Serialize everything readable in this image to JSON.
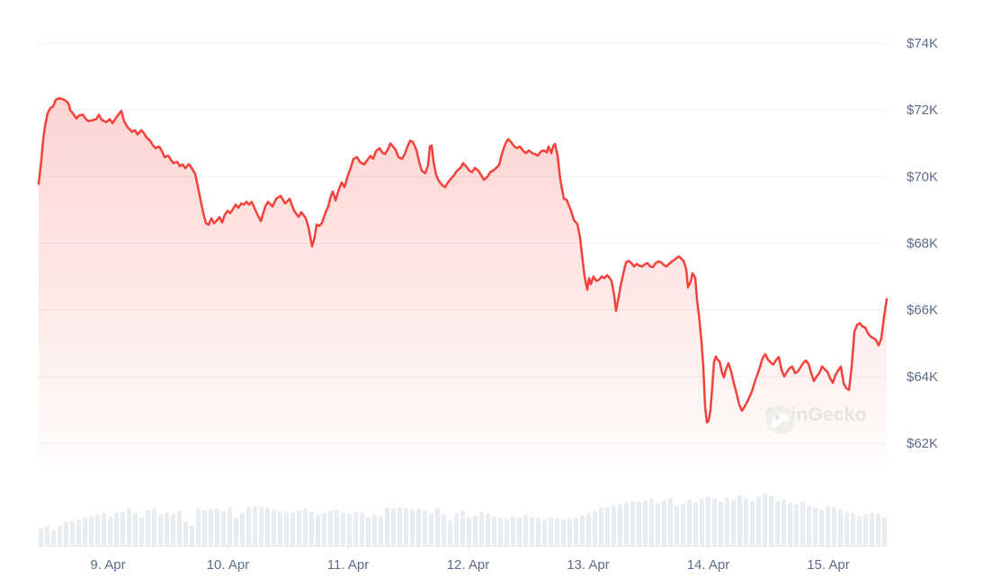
{
  "watermark": {
    "text": "CoinGecko"
  },
  "style": {
    "background": "#ffffff",
    "line_color": "#f4423b",
    "fill_top": "rgba(246,70,60,0.26)",
    "fill_bottom": "rgba(246,70,60,0.015)",
    "grid_color": "#eef0f4",
    "label_color": "#5d6c8a",
    "volume_color": "#e9edf2",
    "baseline_color": "#e3e8ee",
    "watermark_text_color": "#e5e4e1",
    "watermark_logo_color": "#f0efec"
  },
  "chart_data": {
    "type": "line",
    "subtype": "price-with-volume",
    "grid": true,
    "legend": "none",
    "y_axis": {
      "side": "right",
      "unit": "USD",
      "tick_labels": [
        "$74K",
        "$72K",
        "$70K",
        "$68K",
        "$66K",
        "$64K",
        "$62K"
      ],
      "tick_values_k": [
        74,
        72,
        70,
        68,
        66,
        64,
        62
      ],
      "range_k": [
        62,
        74
      ]
    },
    "x_axis": {
      "tick_labels": [
        "9. Apr",
        "10. Apr",
        "11. Apr",
        "12. Apr",
        "13. Apr",
        "14. Apr",
        "15. Apr"
      ],
      "note": "hourly price points spanning ~8 Apr 10:00 to 15 Apr 12:00"
    },
    "price_series": {
      "name": "price",
      "unit_hint": "thousand USD",
      "points": [
        [
          43,
          69.78
        ],
        [
          46,
          70.5
        ],
        [
          48,
          71.1
        ],
        [
          50,
          71.5
        ],
        [
          53,
          71.9
        ],
        [
          56,
          72.05
        ],
        [
          59,
          72.1
        ],
        [
          62,
          72.3
        ],
        [
          66,
          72.35
        ],
        [
          70,
          72.32
        ],
        [
          73,
          72.27
        ],
        [
          76,
          72.2
        ],
        [
          78,
          72.0
        ],
        [
          82,
          71.86
        ],
        [
          85,
          71.74
        ],
        [
          88,
          71.83
        ],
        [
          92,
          71.86
        ],
        [
          95,
          71.74
        ],
        [
          98,
          71.66
        ],
        [
          102,
          71.68
        ],
        [
          107,
          71.72
        ],
        [
          110,
          71.85
        ],
        [
          113,
          71.7
        ],
        [
          118,
          71.63
        ],
        [
          122,
          71.72
        ],
        [
          125,
          71.6
        ],
        [
          130,
          71.8
        ],
        [
          135,
          71.97
        ],
        [
          138,
          71.66
        ],
        [
          142,
          71.47
        ],
        [
          147,
          71.34
        ],
        [
          150,
          71.39
        ],
        [
          153,
          71.26
        ],
        [
          157,
          71.39
        ],
        [
          160,
          71.3
        ],
        [
          163,
          71.17
        ],
        [
          167,
          71.07
        ],
        [
          170,
          70.94
        ],
        [
          173,
          70.85
        ],
        [
          177,
          70.9
        ],
        [
          180,
          70.77
        ],
        [
          183,
          70.58
        ],
        [
          187,
          70.63
        ],
        [
          190,
          70.5
        ],
        [
          193,
          70.4
        ],
        [
          197,
          70.44
        ],
        [
          200,
          70.31
        ],
        [
          203,
          70.36
        ],
        [
          206,
          70.25
        ],
        [
          210,
          70.37
        ],
        [
          213,
          70.26
        ],
        [
          217,
          70.08
        ],
        [
          220,
          69.7
        ],
        [
          223,
          69.3
        ],
        [
          226,
          68.9
        ],
        [
          229,
          68.6
        ],
        [
          232,
          68.55
        ],
        [
          235,
          68.75
        ],
        [
          238,
          68.6
        ],
        [
          241,
          68.68
        ],
        [
          244,
          68.78
        ],
        [
          247,
          68.62
        ],
        [
          250,
          68.85
        ],
        [
          253,
          68.97
        ],
        [
          256,
          68.9
        ],
        [
          259,
          69.02
        ],
        [
          262,
          69.16
        ],
        [
          265,
          69.06
        ],
        [
          268,
          69.19
        ],
        [
          271,
          69.16
        ],
        [
          274,
          69.24
        ],
        [
          277,
          69.16
        ],
        [
          280,
          69.24
        ],
        [
          285,
          68.93
        ],
        [
          290,
          68.66
        ],
        [
          295,
          69.1
        ],
        [
          298,
          69.24
        ],
        [
          303,
          69.1
        ],
        [
          307,
          69.33
        ],
        [
          312,
          69.42
        ],
        [
          317,
          69.19
        ],
        [
          322,
          69.33
        ],
        [
          327,
          68.97
        ],
        [
          332,
          68.79
        ],
        [
          335,
          68.93
        ],
        [
          340,
          68.75
        ],
        [
          343,
          68.48
        ],
        [
          347,
          67.9
        ],
        [
          350,
          68.2
        ],
        [
          352,
          68.56
        ],
        [
          355,
          68.52
        ],
        [
          358,
          68.6
        ],
        [
          362,
          68.93
        ],
        [
          365,
          69.1
        ],
        [
          368,
          69.42
        ],
        [
          370,
          69.55
        ],
        [
          373,
          69.28
        ],
        [
          377,
          69.63
        ],
        [
          380,
          69.82
        ],
        [
          383,
          69.68
        ],
        [
          387,
          70.04
        ],
        [
          390,
          70.26
        ],
        [
          393,
          70.53
        ],
        [
          397,
          70.58
        ],
        [
          400,
          70.44
        ],
        [
          405,
          70.36
        ],
        [
          408,
          70.48
        ],
        [
          412,
          70.62
        ],
        [
          415,
          70.53
        ],
        [
          418,
          70.76
        ],
        [
          422,
          70.85
        ],
        [
          425,
          70.72
        ],
        [
          428,
          70.67
        ],
        [
          432,
          70.85
        ],
        [
          434,
          70.99
        ],
        [
          437,
          70.9
        ],
        [
          440,
          70.8
        ],
        [
          443,
          70.58
        ],
        [
          447,
          70.53
        ],
        [
          450,
          70.67
        ],
        [
          453,
          70.9
        ],
        [
          456,
          71.07
        ],
        [
          459,
          71.04
        ],
        [
          463,
          70.8
        ],
        [
          466,
          70.44
        ],
        [
          469,
          70.17
        ],
        [
          473,
          70.1
        ],
        [
          476,
          70.35
        ],
        [
          478,
          70.9
        ],
        [
          480,
          70.93
        ],
        [
          482,
          70.44
        ],
        [
          485,
          70.04
        ],
        [
          488,
          69.86
        ],
        [
          492,
          69.73
        ],
        [
          495,
          69.68
        ],
        [
          498,
          69.82
        ],
        [
          502,
          69.95
        ],
        [
          505,
          70.04
        ],
        [
          508,
          70.17
        ],
        [
          512,
          70.26
        ],
        [
          515,
          70.4
        ],
        [
          518,
          70.31
        ],
        [
          522,
          70.17
        ],
        [
          525,
          70.13
        ],
        [
          528,
          70.26
        ],
        [
          532,
          70.17
        ],
        [
          535,
          70.04
        ],
        [
          538,
          69.9
        ],
        [
          542,
          69.99
        ],
        [
          545,
          70.13
        ],
        [
          548,
          70.17
        ],
        [
          552,
          70.26
        ],
        [
          555,
          70.35
        ],
        [
          558,
          70.67
        ],
        [
          562,
          70.99
        ],
        [
          565,
          71.12
        ],
        [
          568,
          71.04
        ],
        [
          572,
          70.9
        ],
        [
          575,
          70.85
        ],
        [
          578,
          70.9
        ],
        [
          582,
          70.76
        ],
        [
          585,
          70.7
        ],
        [
          588,
          70.78
        ],
        [
          592,
          70.7
        ],
        [
          595,
          70.67
        ],
        [
          598,
          70.63
        ],
        [
          602,
          70.76
        ],
        [
          605,
          70.78
        ],
        [
          608,
          70.72
        ],
        [
          610,
          70.9
        ],
        [
          613,
          70.7
        ],
        [
          615,
          70.9
        ],
        [
          617,
          70.98
        ],
        [
          620,
          70.63
        ],
        [
          623,
          69.9
        ],
        [
          627,
          69.33
        ],
        [
          630,
          69.3
        ],
        [
          635,
          68.97
        ],
        [
          638,
          68.7
        ],
        [
          642,
          68.57
        ],
        [
          645,
          68.17
        ],
        [
          647,
          67.68
        ],
        [
          650,
          67.0
        ],
        [
          653,
          66.6
        ],
        [
          655,
          66.95
        ],
        [
          657,
          66.77
        ],
        [
          660,
          67.0
        ],
        [
          663,
          66.87
        ],
        [
          666,
          66.9
        ],
        [
          669,
          67.0
        ],
        [
          672,
          66.95
        ],
        [
          675,
          67.04
        ],
        [
          678,
          66.95
        ],
        [
          680,
          66.87
        ],
        [
          683,
          66.42
        ],
        [
          685,
          65.97
        ],
        [
          688,
          66.4
        ],
        [
          690,
          66.72
        ],
        [
          693,
          67.08
        ],
        [
          696,
          67.42
        ],
        [
          699,
          67.47
        ],
        [
          702,
          67.4
        ],
        [
          705,
          67.3
        ],
        [
          708,
          67.38
        ],
        [
          711,
          67.32
        ],
        [
          714,
          67.3
        ],
        [
          717,
          67.37
        ],
        [
          720,
          67.4
        ],
        [
          723,
          67.3
        ],
        [
          726,
          67.28
        ],
        [
          729,
          67.4
        ],
        [
          732,
          67.45
        ],
        [
          735,
          67.43
        ],
        [
          738,
          67.35
        ],
        [
          741,
          67.3
        ],
        [
          744,
          67.38
        ],
        [
          747,
          67.45
        ],
        [
          750,
          67.5
        ],
        [
          753,
          67.57
        ],
        [
          755,
          67.6
        ],
        [
          758,
          67.52
        ],
        [
          760,
          67.47
        ],
        [
          763,
          67.22
        ],
        [
          765,
          66.67
        ],
        [
          768,
          66.85
        ],
        [
          770,
          67.1
        ],
        [
          773,
          66.97
        ],
        [
          775,
          66.3
        ],
        [
          777,
          65.88
        ],
        [
          780,
          65.05
        ],
        [
          782,
          64.3
        ],
        [
          784,
          63.1
        ],
        [
          786,
          62.62
        ],
        [
          788,
          62.68
        ],
        [
          790,
          63.0
        ],
        [
          792,
          63.7
        ],
        [
          794,
          64.45
        ],
        [
          796,
          64.6
        ],
        [
          798,
          64.5
        ],
        [
          800,
          64.46
        ],
        [
          803,
          64.1
        ],
        [
          805,
          63.97
        ],
        [
          807,
          64.2
        ],
        [
          810,
          64.4
        ],
        [
          813,
          64.15
        ],
        [
          816,
          63.8
        ],
        [
          819,
          63.5
        ],
        [
          822,
          63.15
        ],
        [
          825,
          62.97
        ],
        [
          828,
          63.1
        ],
        [
          832,
          63.3
        ],
        [
          836,
          63.55
        ],
        [
          840,
          63.9
        ],
        [
          844,
          64.2
        ],
        [
          848,
          64.55
        ],
        [
          851,
          64.67
        ],
        [
          854,
          64.5
        ],
        [
          857,
          64.42
        ],
        [
          860,
          64.36
        ],
        [
          863,
          64.5
        ],
        [
          866,
          64.58
        ],
        [
          869,
          64.2
        ],
        [
          872,
          64.0
        ],
        [
          875,
          64.14
        ],
        [
          878,
          64.25
        ],
        [
          881,
          64.3
        ],
        [
          884,
          64.1
        ],
        [
          887,
          64.15
        ],
        [
          890,
          64.27
        ],
        [
          893,
          64.4
        ],
        [
          896,
          64.48
        ],
        [
          899,
          64.38
        ],
        [
          902,
          64.1
        ],
        [
          905,
          63.86
        ],
        [
          908,
          64.0
        ],
        [
          911,
          64.1
        ],
        [
          914,
          64.3
        ],
        [
          917,
          64.22
        ],
        [
          920,
          64.14
        ],
        [
          923,
          63.95
        ],
        [
          926,
          63.81
        ],
        [
          929,
          64.05
        ],
        [
          932,
          64.18
        ],
        [
          935,
          64.3
        ],
        [
          938,
          63.8
        ],
        [
          941,
          63.65
        ],
        [
          944,
          63.6
        ],
        [
          947,
          64.3
        ],
        [
          950,
          65.34
        ],
        [
          953,
          65.55
        ],
        [
          956,
          65.6
        ],
        [
          959,
          65.5
        ],
        [
          962,
          65.47
        ],
        [
          965,
          65.3
        ],
        [
          968,
          65.2
        ],
        [
          971,
          65.15
        ],
        [
          974,
          65.1
        ],
        [
          977,
          64.93
        ],
        [
          980,
          65.15
        ],
        [
          983,
          65.8
        ],
        [
          986,
          66.32
        ]
      ]
    },
    "volume_series": {
      "name": "volume",
      "unit_hint": "relative bar height (no units shown on screen)",
      "values": [
        20,
        22,
        18,
        23,
        27,
        28,
        30,
        32,
        33,
        35,
        37,
        33,
        37,
        38,
        42,
        37,
        32,
        40,
        42,
        35,
        37,
        36,
        39,
        27,
        23,
        42,
        40,
        41,
        42,
        39,
        43,
        32,
        37,
        43,
        45,
        44,
        43,
        41,
        39,
        38,
        37,
        40,
        42,
        39,
        35,
        37,
        39,
        41,
        37,
        36,
        38,
        37,
        32,
        35,
        33,
        43,
        42,
        43,
        42,
        41,
        42,
        40,
        37,
        42,
        35,
        29,
        37,
        39,
        32,
        34,
        38,
        36,
        33,
        32,
        30,
        33,
        32,
        35,
        33,
        32,
        30,
        32,
        31,
        30,
        31,
        32,
        34,
        37,
        39,
        43,
        43,
        45,
        47,
        49,
        50,
        49,
        51,
        53,
        48,
        51,
        53,
        45,
        47,
        52,
        49,
        53,
        55,
        53,
        50,
        54,
        52,
        57,
        53,
        50,
        55,
        58,
        56,
        50,
        52,
        48,
        47,
        49,
        45,
        43,
        40,
        45,
        43,
        41,
        38,
        37,
        33,
        35,
        37,
        36,
        32
      ]
    }
  }
}
